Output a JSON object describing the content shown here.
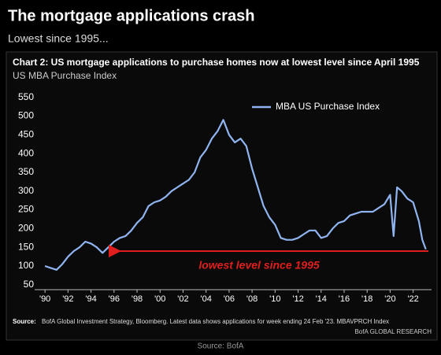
{
  "header": {
    "title": "The mortgage applications crash",
    "subtitle": "Lowest since 1995...",
    "footer": "Source: BofA"
  },
  "chart_data": {
    "type": "line",
    "title": "Chart 2: US mortgage applications to purchase homes now at lowest level since April 1995",
    "subtitle": "US MBA Purchase Index",
    "x": [
      1990,
      1990.5,
      1991,
      1991.5,
      1992,
      1992.5,
      1993,
      1993.5,
      1994,
      1994.5,
      1995,
      1995.5,
      1996,
      1996.5,
      1997,
      1997.5,
      1998,
      1998.5,
      1999,
      1999.5,
      2000,
      2000.5,
      2001,
      2001.5,
      2002,
      2002.5,
      2003,
      2003.5,
      2004,
      2004.5,
      2005,
      2005.5,
      2006,
      2006.5,
      2007,
      2007.5,
      2008,
      2008.5,
      2009,
      2009.5,
      2010,
      2010.5,
      2011,
      2011.5,
      2012,
      2012.5,
      2013,
      2013.5,
      2014,
      2014.5,
      2015,
      2015.5,
      2016,
      2016.5,
      2017,
      2017.5,
      2018,
      2018.5,
      2019,
      2019.5,
      2020,
      2020.3,
      2020.6,
      2021,
      2021.5,
      2022,
      2022.5,
      2022.8,
      2023.1
    ],
    "series": [
      {
        "name": "MBA US Purchase Index",
        "color": "#8fb4f0",
        "values": [
          100,
          95,
          90,
          105,
          125,
          140,
          150,
          165,
          160,
          150,
          135,
          150,
          165,
          175,
          180,
          195,
          215,
          230,
          260,
          270,
          275,
          285,
          300,
          310,
          320,
          330,
          350,
          390,
          410,
          440,
          460,
          490,
          450,
          430,
          440,
          420,
          360,
          310,
          260,
          230,
          210,
          175,
          170,
          170,
          175,
          185,
          195,
          195,
          175,
          180,
          200,
          215,
          220,
          235,
          240,
          245,
          245,
          245,
          255,
          265,
          290,
          180,
          310,
          300,
          280,
          270,
          220,
          170,
          145
        ]
      }
    ],
    "xlim": [
      1989.1,
      2023.6
    ],
    "xticks": [
      {
        "value": 1990,
        "label": "'90"
      },
      {
        "value": 1992,
        "label": "'92"
      },
      {
        "value": 1994,
        "label": "'94"
      },
      {
        "value": 1996,
        "label": "'96"
      },
      {
        "value": 1998,
        "label": "'98"
      },
      {
        "value": 2000,
        "label": "'00"
      },
      {
        "value": 2002,
        "label": "'02"
      },
      {
        "value": 2004,
        "label": "'04"
      },
      {
        "value": 2006,
        "label": "'06"
      },
      {
        "value": 2008,
        "label": "'08"
      },
      {
        "value": 2010,
        "label": "'10"
      },
      {
        "value": 2012,
        "label": "'12"
      },
      {
        "value": 2014,
        "label": "'14"
      },
      {
        "value": 2016,
        "label": "'16"
      },
      {
        "value": 2018,
        "label": "'18"
      },
      {
        "value": 2020,
        "label": "'20"
      },
      {
        "value": 2022,
        "label": "'22"
      }
    ],
    "ylim": [
      37,
      562
    ],
    "yticks": [
      50,
      100,
      150,
      200,
      250,
      300,
      350,
      400,
      450,
      500,
      550
    ],
    "grid": false,
    "legend": "upper right",
    "annotation": {
      "text": "lowest level since 1995",
      "value": 140,
      "color": "#e01e1e"
    },
    "source_label": "Source:",
    "source_text": "BofA Global Investment Strategy, Bloomberg. Latest data shows applications  for week ending 24 Feb '23. MBAVPRCH Index",
    "credit": "BofA GLOBAL RESEARCH"
  }
}
